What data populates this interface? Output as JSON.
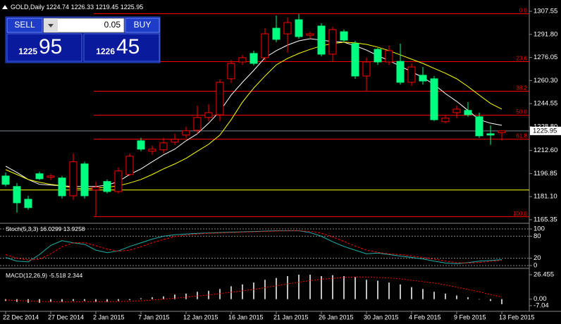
{
  "chart_data": [
    {
      "type": "candlestick",
      "title": "GOLD,Daily",
      "categories": [
        "22 Dec 2014",
        null,
        null,
        null,
        "27 Dec 2014",
        null,
        null,
        null,
        "2 Jan 2015",
        null,
        null,
        null,
        "7 Jan 2015",
        null,
        null,
        null,
        "12 Jan 2015",
        null,
        null,
        null,
        "16 Jan 2015",
        null,
        null,
        null,
        "21 Jan 2015",
        null,
        null,
        null,
        "26 Jan 2015",
        null,
        null,
        null,
        "30 Jan 2015",
        null,
        null,
        null,
        "4 Feb 2015",
        null,
        null,
        null,
        "9 Feb 2015",
        null,
        null,
        null,
        "13 Feb 2015"
      ],
      "open": [
        1195.2,
        1188.0,
        1179.3,
        1196.7,
        1194.3,
        1193.8,
        1181.7,
        1203.4,
        1185.6,
        1191.4,
        1184.6,
        1196.2,
        1219.2,
        1212.1,
        1213.0,
        1218.3,
        1223.1,
        1226.4,
        1235.1,
        1236.9,
        1261.5,
        1273.0,
        1278.8,
        1275.9,
        1296.0,
        1292.2,
        1301.8,
        1291.2,
        1297.5,
        1278.3,
        1293.6,
        1285.5,
        1263.4,
        1281.6,
        1273.0,
        1273.4,
        1259.1,
        1263.9,
        1261.5,
        1232.2,
        1238.4,
        1239.9,
        1235.6,
        1224.0,
        1224.74
      ],
      "high": [
        1197.6,
        1190.4,
        1181.7,
        1198.1,
        1196.7,
        1195.2,
        1210.6,
        1204.9,
        1191.4,
        1192.8,
        1201.0,
        1210.6,
        1221.2,
        1215.9,
        1221.3,
        1224.0,
        1228.8,
        1243.2,
        1244.2,
        1261.0,
        1274.4,
        1277.8,
        1280.7,
        1296.0,
        1304.7,
        1303.2,
        1305.6,
        1293.6,
        1299.4,
        1297.0,
        1295.1,
        1287.4,
        1275.9,
        1282.6,
        1284.0,
        1285.5,
        1272.0,
        1269.6,
        1263.4,
        1237.0,
        1243.2,
        1245.6,
        1238.4,
        1229.8,
        1226.33
      ],
      "low": [
        1188.0,
        1170.2,
        1172.2,
        1192.4,
        1192.4,
        1179.8,
        1178.9,
        1179.8,
        1167.4,
        1183.2,
        1183.2,
        1195.2,
        1212.1,
        1209.6,
        1210.6,
        1216.4,
        1221.2,
        1224.0,
        1232.7,
        1232.7,
        1258.6,
        1271.0,
        1270.6,
        1273.9,
        1286.5,
        1279.2,
        1288.8,
        1288.8,
        1276.8,
        1273.0,
        1286.5,
        1261.5,
        1252.9,
        1271.0,
        1271.0,
        1257.6,
        1256.7,
        1257.6,
        1232.7,
        1231.2,
        1234.6,
        1235.6,
        1221.2,
        1216.4,
        1219.45
      ],
      "close": [
        1189.5,
        1176.9,
        1173.6,
        1193.3,
        1195.2,
        1181.7,
        1204.9,
        1181.7,
        1187.5,
        1184.6,
        1198.6,
        1208.7,
        1213.5,
        1213.5,
        1217.8,
        1220.2,
        1226.0,
        1235.1,
        1238.4,
        1259.1,
        1272.0,
        1275.9,
        1272.0,
        1292.2,
        1288.4,
        1299.9,
        1290.3,
        1292.2,
        1278.3,
        1295.1,
        1287.9,
        1263.4,
        1273.0,
        1273.0,
        1280.7,
        1259.1,
        1269.6,
        1260.0,
        1233.6,
        1234.6,
        1240.8,
        1237.0,
        1222.6,
        1223.1,
        1225.95
      ],
      "up_color": "#ff0000",
      "down_color": "#00ff80",
      "ylim": [
        1163.4,
        1314.3
      ],
      "yticks": [
        1307.55,
        {
          "value": 1291.8,
          "label": "1291.80"
        },
        1276.05,
        {
          "value": 1260.3,
          "label": "1260.30"
        },
        1244.55,
        {
          "value": 1228.8,
          "label": "1228.80"
        },
        {
          "value": 1212.6,
          "label": "1212.60"
        },
        1196.85,
        {
          "value": 1181.1,
          "label": "1181.10"
        },
        1165.35
      ],
      "ma": [
        {
          "color": "#ffffff",
          "values": [
            1201.9,
            1197.6,
            1192.8,
            1189.5,
            1189.0,
            1188.5,
            1188.0,
            1188.0,
            1188.0,
            1189.0,
            1191.4,
            1196.2,
            1200.0,
            1204.9,
            1209.6,
            1213.5,
            1219.2,
            1224.0,
            1231.2,
            1239.4,
            1250.4,
            1259.1,
            1267.2,
            1275.9,
            1280.7,
            1284.5,
            1287.4,
            1288.8,
            1287.9,
            1286.9,
            1286.5,
            1284.0,
            1281.1,
            1277.3,
            1273.9,
            1270.1,
            1266.3,
            1262.4,
            1257.6,
            1251.4,
            1246.1,
            1239.9,
            1233.6,
            1231.2,
            1229.8
          ]
        },
        {
          "color": "#ffff00",
          "values": [
            1199.5,
            1196.2,
            1192.8,
            1190.9,
            1189.5,
            1188.5,
            1187.0,
            1186.5,
            1187.0,
            1187.5,
            1188.5,
            1190.4,
            1192.8,
            1196.2,
            1200.0,
            1203.4,
            1207.2,
            1212.1,
            1216.8,
            1223.1,
            1233.6,
            1245.6,
            1255.2,
            1263.4,
            1271.0,
            1275.4,
            1278.8,
            1281.6,
            1284.0,
            1285.5,
            1286.5,
            1286.0,
            1285.0,
            1283.1,
            1280.7,
            1277.8,
            1274.9,
            1272.0,
            1268.6,
            1265.3,
            1261.5,
            1256.2,
            1250.4,
            1244.7,
            1240.8
          ]
        }
      ],
      "fib_color": "#ff0000",
      "fib_levels": [
        {
          "label": "0.0",
          "value": 1305.9
        },
        {
          "label": "23.6",
          "value": 1273.2
        },
        {
          "label": "38.2",
          "value": 1253.0
        },
        {
          "label": "50.0",
          "value": 1236.65
        },
        {
          "label": "61.8",
          "value": 1220.3
        },
        {
          "label": "100.0",
          "value": 1167.4
        }
      ],
      "horizontal_line": {
        "value": 1185.6,
        "color": "#ffff00"
      }
    },
    {
      "type": "line",
      "title": "Stoch(5,3,3)",
      "ylim": [
        -5.8,
        111.5
      ],
      "yticks": [
        100,
        80,
        20,
        0
      ],
      "series": [
        {
          "color": "#20b2aa",
          "style": "solid",
          "values": [
            22,
            12,
            10,
            30,
            55,
            68,
            62,
            58,
            42,
            35,
            40,
            52,
            62,
            72,
            80,
            84,
            86,
            88,
            89,
            90,
            91,
            92,
            93,
            94,
            95,
            95,
            95,
            90,
            80,
            65,
            52,
            42,
            32,
            34,
            30,
            26,
            22,
            18,
            12,
            7,
            5,
            8,
            12,
            14,
            16.0299
          ]
        },
        {
          "color": "#ff0000",
          "style": "dashed",
          "values": [
            30,
            20,
            15,
            17,
            32,
            51,
            62,
            63,
            54,
            45,
            39,
            42,
            51,
            62,
            71,
            79,
            83,
            86,
            88,
            89,
            90,
            91,
            92,
            93,
            94,
            94.7,
            95,
            93.3,
            88.3,
            78.3,
            65.7,
            53,
            42,
            36,
            32,
            30,
            26,
            22,
            17.3,
            12.3,
            8,
            6.7,
            8.3,
            11.3,
            13.9258
          ]
        }
      ]
    },
    {
      "type": "macd",
      "title": "MACD(12,26,9)",
      "ylim": [
        -11.7,
        31.1
      ],
      "yticks": [
        26.455,
        {
          "value": 0,
          "label": "0.00"
        },
        -7.04
      ],
      "color": "#c0c0c0",
      "values": [
        -2,
        -3,
        -4,
        -4,
        -3,
        -3,
        -2,
        -2,
        -3,
        -3,
        -2,
        -1,
        1,
        2,
        3,
        5,
        6,
        8,
        9,
        11,
        14,
        16,
        18,
        21,
        23,
        25,
        26.5,
        26.5,
        25,
        26,
        25,
        24,
        21,
        20,
        18,
        16,
        13,
        11,
        8,
        6,
        4,
        2,
        0,
        -2,
        -5.518
      ],
      "signal": {
        "color": "#ff0000",
        "values": [
          -1,
          -1.5,
          -2,
          -2.5,
          -2.8,
          -3,
          -3,
          -2.8,
          -2.8,
          -2.8,
          -2.6,
          -2.3,
          -1.8,
          -1,
          0,
          1,
          2,
          3.5,
          4.5,
          6,
          7.5,
          9,
          10.5,
          12.5,
          14.5,
          16.5,
          18.5,
          20,
          21.5,
          22.5,
          23.5,
          24,
          24,
          23.5,
          23,
          22,
          20.5,
          19,
          17.5,
          15.5,
          13,
          10.5,
          8,
          5,
          2.344
        ]
      }
    }
  ],
  "trade_panel": {
    "sell": "SELL",
    "buy": "BUY",
    "lot": "0.05",
    "bid_big": "1225",
    "bid_small": "95",
    "ask_big": "1226",
    "ask_small": "45"
  }
}
